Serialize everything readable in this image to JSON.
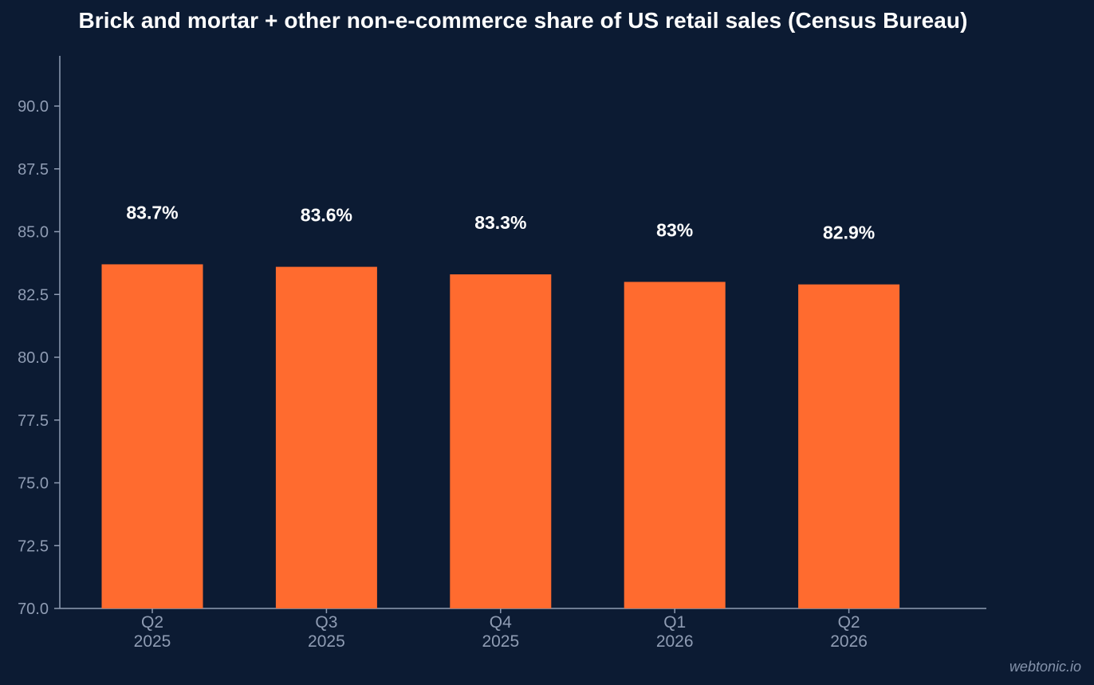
{
  "chart_data": {
    "type": "bar",
    "title": "Brick and mortar + other non-e-commerce share of US retail sales (Census Bureau)",
    "categories": [
      [
        "Q2",
        "2025"
      ],
      [
        "Q3",
        "2025"
      ],
      [
        "Q4",
        "2025"
      ],
      [
        "Q1",
        "2026"
      ],
      [
        "Q2",
        "2026"
      ]
    ],
    "values": [
      83.7,
      83.6,
      83.3,
      83.0,
      82.9
    ],
    "data_labels": [
      "83.7%",
      "83.6%",
      "83.3%",
      "83%",
      "82.9%"
    ],
    "ylim": [
      70,
      92
    ],
    "yticks": [
      70.0,
      72.5,
      75.0,
      77.5,
      80.0,
      82.5,
      85.0,
      87.5,
      90.0
    ],
    "ytick_labels": [
      "70.0",
      "72.5",
      "75.0",
      "77.5",
      "80.0",
      "82.5",
      "85.0",
      "87.5",
      "90.0"
    ],
    "xlabel": "",
    "ylabel": "",
    "grid": false,
    "legend": "none",
    "colors": {
      "background": "#0c1b33",
      "bar": "#ff6b2f",
      "axis": "#8f9cb3",
      "tick_text": "#8f9cb3",
      "data_label": "#ffffff"
    }
  },
  "watermark": "webtonic.io"
}
